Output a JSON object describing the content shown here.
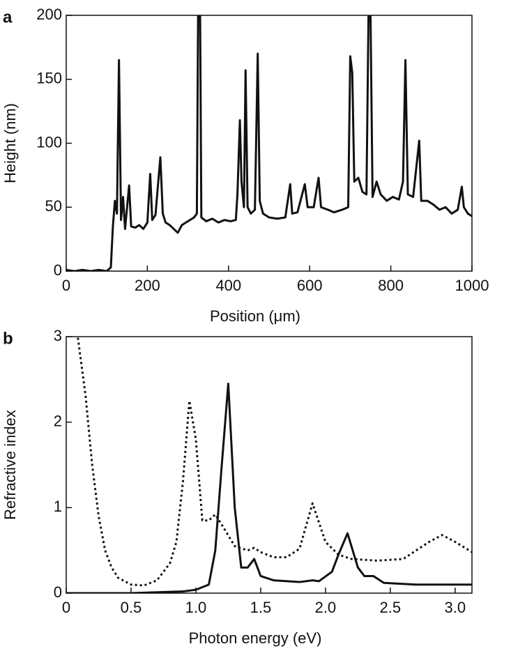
{
  "chart_data": [
    {
      "type": "line",
      "panel": "a",
      "xlabel": "Position (μm)",
      "ylabel": "Height (nm)",
      "xlim": [
        0,
        1000
      ],
      "ylim": [
        0,
        200
      ],
      "xticks": [
        0,
        200,
        400,
        600,
        800,
        1000
      ],
      "yticks": [
        0,
        50,
        100,
        150,
        200
      ],
      "series": [
        {
          "color": "#111111",
          "dash": "solid",
          "x": [
            0,
            20,
            40,
            60,
            80,
            100,
            110,
            115,
            120,
            125,
            130,
            135,
            140,
            145,
            155,
            160,
            170,
            180,
            190,
            200,
            207,
            212,
            220,
            225,
            232,
            238,
            245,
            255,
            265,
            275,
            285,
            295,
            305,
            315,
            322,
            325,
            330,
            333,
            345,
            360,
            375,
            390,
            405,
            418,
            422,
            428,
            432,
            438,
            442,
            447,
            455,
            465,
            472,
            477,
            485,
            500,
            520,
            540,
            552,
            557,
            570,
            588,
            595,
            610,
            622,
            628,
            645,
            660,
            680,
            695,
            700,
            705,
            710,
            720,
            730,
            740,
            745,
            750,
            755,
            765,
            775,
            790,
            805,
            820,
            830,
            836,
            842,
            855,
            870,
            875,
            890,
            905,
            920,
            935,
            950,
            965,
            975,
            980,
            990,
            1000
          ],
          "values": [
            1,
            0,
            1,
            0,
            1,
            0,
            3,
            35,
            55,
            45,
            165,
            40,
            58,
            33,
            67,
            35,
            34,
            36,
            33,
            38,
            76,
            40,
            44,
            63,
            89,
            45,
            38,
            36,
            33,
            30,
            36,
            38,
            40,
            42,
            45,
            200,
            200,
            42,
            39,
            41,
            38,
            40,
            39,
            40,
            60,
            118,
            70,
            50,
            157,
            50,
            45,
            48,
            170,
            55,
            45,
            42,
            41,
            42,
            68,
            45,
            46,
            68,
            50,
            50,
            73,
            50,
            48,
            46,
            48,
            50,
            168,
            155,
            70,
            73,
            62,
            60,
            200,
            200,
            58,
            70,
            60,
            55,
            58,
            56,
            70,
            165,
            60,
            58,
            102,
            55,
            55,
            52,
            48,
            50,
            45,
            48,
            66,
            50,
            45,
            43
          ]
        }
      ]
    },
    {
      "type": "line",
      "panel": "b",
      "xlabel": "Photon energy (eV)",
      "ylabel": "Refractive index",
      "xlim": [
        0,
        3.13
      ],
      "ylim": [
        0,
        3
      ],
      "xticks": [
        0,
        0.5,
        {
          "value": 1,
          "label": "1.0"
        },
        1.5,
        {
          "value": 2,
          "label": "2.0"
        },
        2.5,
        {
          "value": 3,
          "label": "3.0"
        }
      ],
      "yticks": [
        0,
        1,
        2,
        3
      ],
      "series": [
        {
          "color": "#111111",
          "dash": "solid",
          "x": [
            0,
            0.5,
            0.9,
            1.0,
            1.1,
            1.15,
            1.2,
            1.25,
            1.3,
            1.35,
            1.4,
            1.45,
            1.5,
            1.6,
            1.8,
            1.9,
            1.95,
            2.05,
            2.1,
            2.17,
            2.25,
            2.3,
            2.37,
            2.45,
            2.7,
            3.13
          ],
          "values": [
            0,
            0,
            0.02,
            0.04,
            0.1,
            0.5,
            1.5,
            2.45,
            1.0,
            0.3,
            0.3,
            0.4,
            0.2,
            0.15,
            0.13,
            0.15,
            0.14,
            0.25,
            0.45,
            0.7,
            0.3,
            0.2,
            0.2,
            0.12,
            0.1,
            0.1
          ]
        },
        {
          "color": "#111111",
          "dash": "dotted",
          "x": [
            0.08,
            0.15,
            0.2,
            0.25,
            0.3,
            0.35,
            0.4,
            0.5,
            0.6,
            0.7,
            0.8,
            0.85,
            0.9,
            0.95,
            1.0,
            1.05,
            1.1,
            1.15,
            1.2,
            1.3,
            1.4,
            1.45,
            1.5,
            1.6,
            1.7,
            1.8,
            1.9,
            2.0,
            2.1,
            2.2,
            2.4,
            2.6,
            2.8,
            2.9,
            3.0,
            3.13
          ],
          "values": [
            3.1,
            2.3,
            1.5,
            0.9,
            0.5,
            0.3,
            0.18,
            0.1,
            0.09,
            0.15,
            0.35,
            0.6,
            1.3,
            2.25,
            1.8,
            0.85,
            0.85,
            0.92,
            0.8,
            0.55,
            0.5,
            0.53,
            0.48,
            0.42,
            0.42,
            0.52,
            1.05,
            0.6,
            0.45,
            0.4,
            0.38,
            0.4,
            0.6,
            0.68,
            0.6,
            0.48
          ]
        }
      ]
    }
  ]
}
